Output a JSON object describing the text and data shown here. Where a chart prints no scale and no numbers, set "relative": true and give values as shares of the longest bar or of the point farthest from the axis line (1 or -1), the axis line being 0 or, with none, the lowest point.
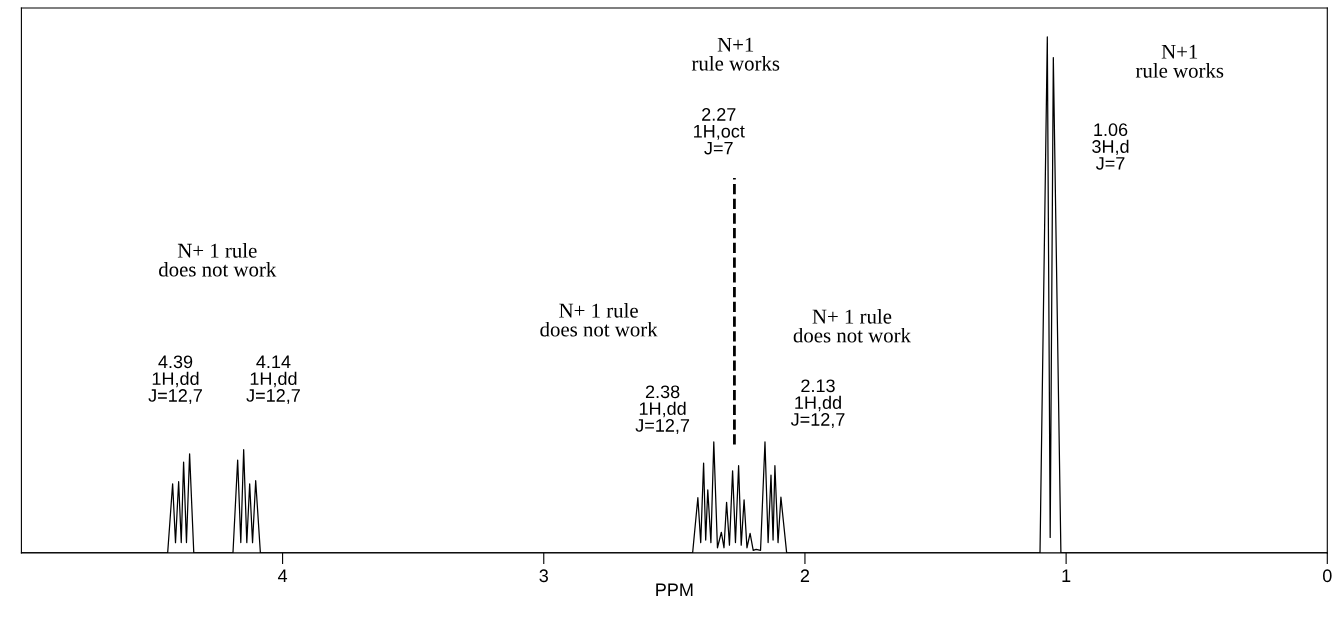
{
  "chart_data": {
    "type": "line",
    "relative": true,
    "xlabel": "PPM",
    "xlim": [
      5,
      0
    ],
    "xticks": [
      4,
      3,
      2,
      1,
      0
    ],
    "tick_labels": "x",
    "grid": false,
    "legend": false,
    "marker": "none",
    "line_style": "solid",
    "series": [
      {
        "color": "#000000",
        "x": [
          5,
          4.44,
          4.421,
          4.41,
          4.398,
          4.388,
          4.379,
          4.368,
          4.356,
          4.34,
          4.19,
          4.172,
          4.16,
          4.149,
          4.137,
          4.126,
          4.115,
          4.103,
          4.085,
          2.43,
          2.41,
          2.399,
          2.388,
          2.38,
          2.372,
          2.36,
          2.349,
          2.335,
          2.32,
          2.31,
          2.3,
          2.289,
          2.277,
          2.266,
          2.254,
          2.244,
          2.233,
          2.222,
          2.21,
          2.198,
          2.187,
          2.17,
          2.153,
          2.141,
          2.13,
          2.122,
          2.115,
          2.103,
          2.092,
          2.07,
          1.1,
          1.072,
          1.061,
          1.049,
          1.02,
          0
        ],
        "values": [
          0,
          0,
          0.134,
          0.02,
          0.138,
          0.02,
          0.176,
          0.02,
          0.192,
          0,
          0,
          0.18,
          0.02,
          0.2,
          0.02,
          0.134,
          0.02,
          0.14,
          0,
          0,
          0.107,
          0.02,
          0.174,
          0.025,
          0.122,
          0.02,
          0.215,
          0.01,
          0.04,
          0.01,
          0.098,
          0.015,
          0.159,
          0.02,
          0.169,
          0.015,
          0.103,
          0.01,
          0.038,
          0.005,
          0.007,
          0.005,
          0.215,
          0.02,
          0.151,
          0.025,
          0.169,
          0.02,
          0.108,
          0,
          0,
          1.0,
          0.03,
          0.96,
          0,
          0
        ]
      }
    ],
    "ref_lines": [
      {
        "axis": "x",
        "value": 2.27,
        "label": null,
        "color": "#000000",
        "line_style": "dashed"
      }
    ],
    "annotations": [
      "N+ 1 rule\ndoes not work",
      "N+ 1 rule\ndoes not work",
      "N+1\nrule works",
      "N+ 1 rule\ndoes not work",
      "N+1\nrule works",
      "4.39\n1H,dd\nJ=12,7",
      "4.14\n1H,dd\nJ=12,7",
      "2.38\n1H,dd\nJ=12,7",
      "2.27\n1H,oct\nJ=7",
      "2.13\n1H,dd\nJ=12,7",
      "1.06\n3H,d\nJ=7"
    ]
  }
}
